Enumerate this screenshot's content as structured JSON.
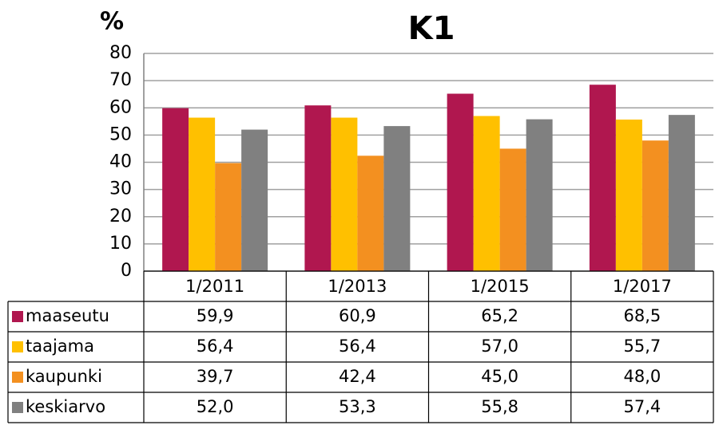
{
  "chart_data": {
    "type": "bar",
    "title": "K1",
    "y_label": "%",
    "categories": [
      "1/2011",
      "1/2013",
      "1/2015",
      "1/2017"
    ],
    "series": [
      {
        "name": "maaseutu",
        "color": "#b0174f",
        "values": [
          59.9,
          60.9,
          65.2,
          68.5
        ],
        "value_labels": [
          "59,9",
          "60,9",
          "65,2",
          "68,5"
        ]
      },
      {
        "name": "taajama",
        "color": "#ffc000",
        "values": [
          56.4,
          56.4,
          57.0,
          55.7
        ],
        "value_labels": [
          "56,4",
          "56,4",
          "57,0",
          "55,7"
        ]
      },
      {
        "name": "kaupunki",
        "color": "#f39020",
        "values": [
          39.7,
          42.4,
          45.0,
          48.0
        ],
        "value_labels": [
          "39,7",
          "42,4",
          "45,0",
          "48,0"
        ]
      },
      {
        "name": "keskiarvo",
        "color": "#808080",
        "values": [
          52.0,
          53.3,
          55.8,
          57.4
        ],
        "value_labels": [
          "52,0",
          "53,3",
          "55,8",
          "57,4"
        ]
      }
    ],
    "ylim": [
      0,
      80
    ],
    "yticks": [
      0,
      10,
      20,
      30,
      40,
      50,
      60,
      70,
      80
    ],
    "grid": true
  }
}
